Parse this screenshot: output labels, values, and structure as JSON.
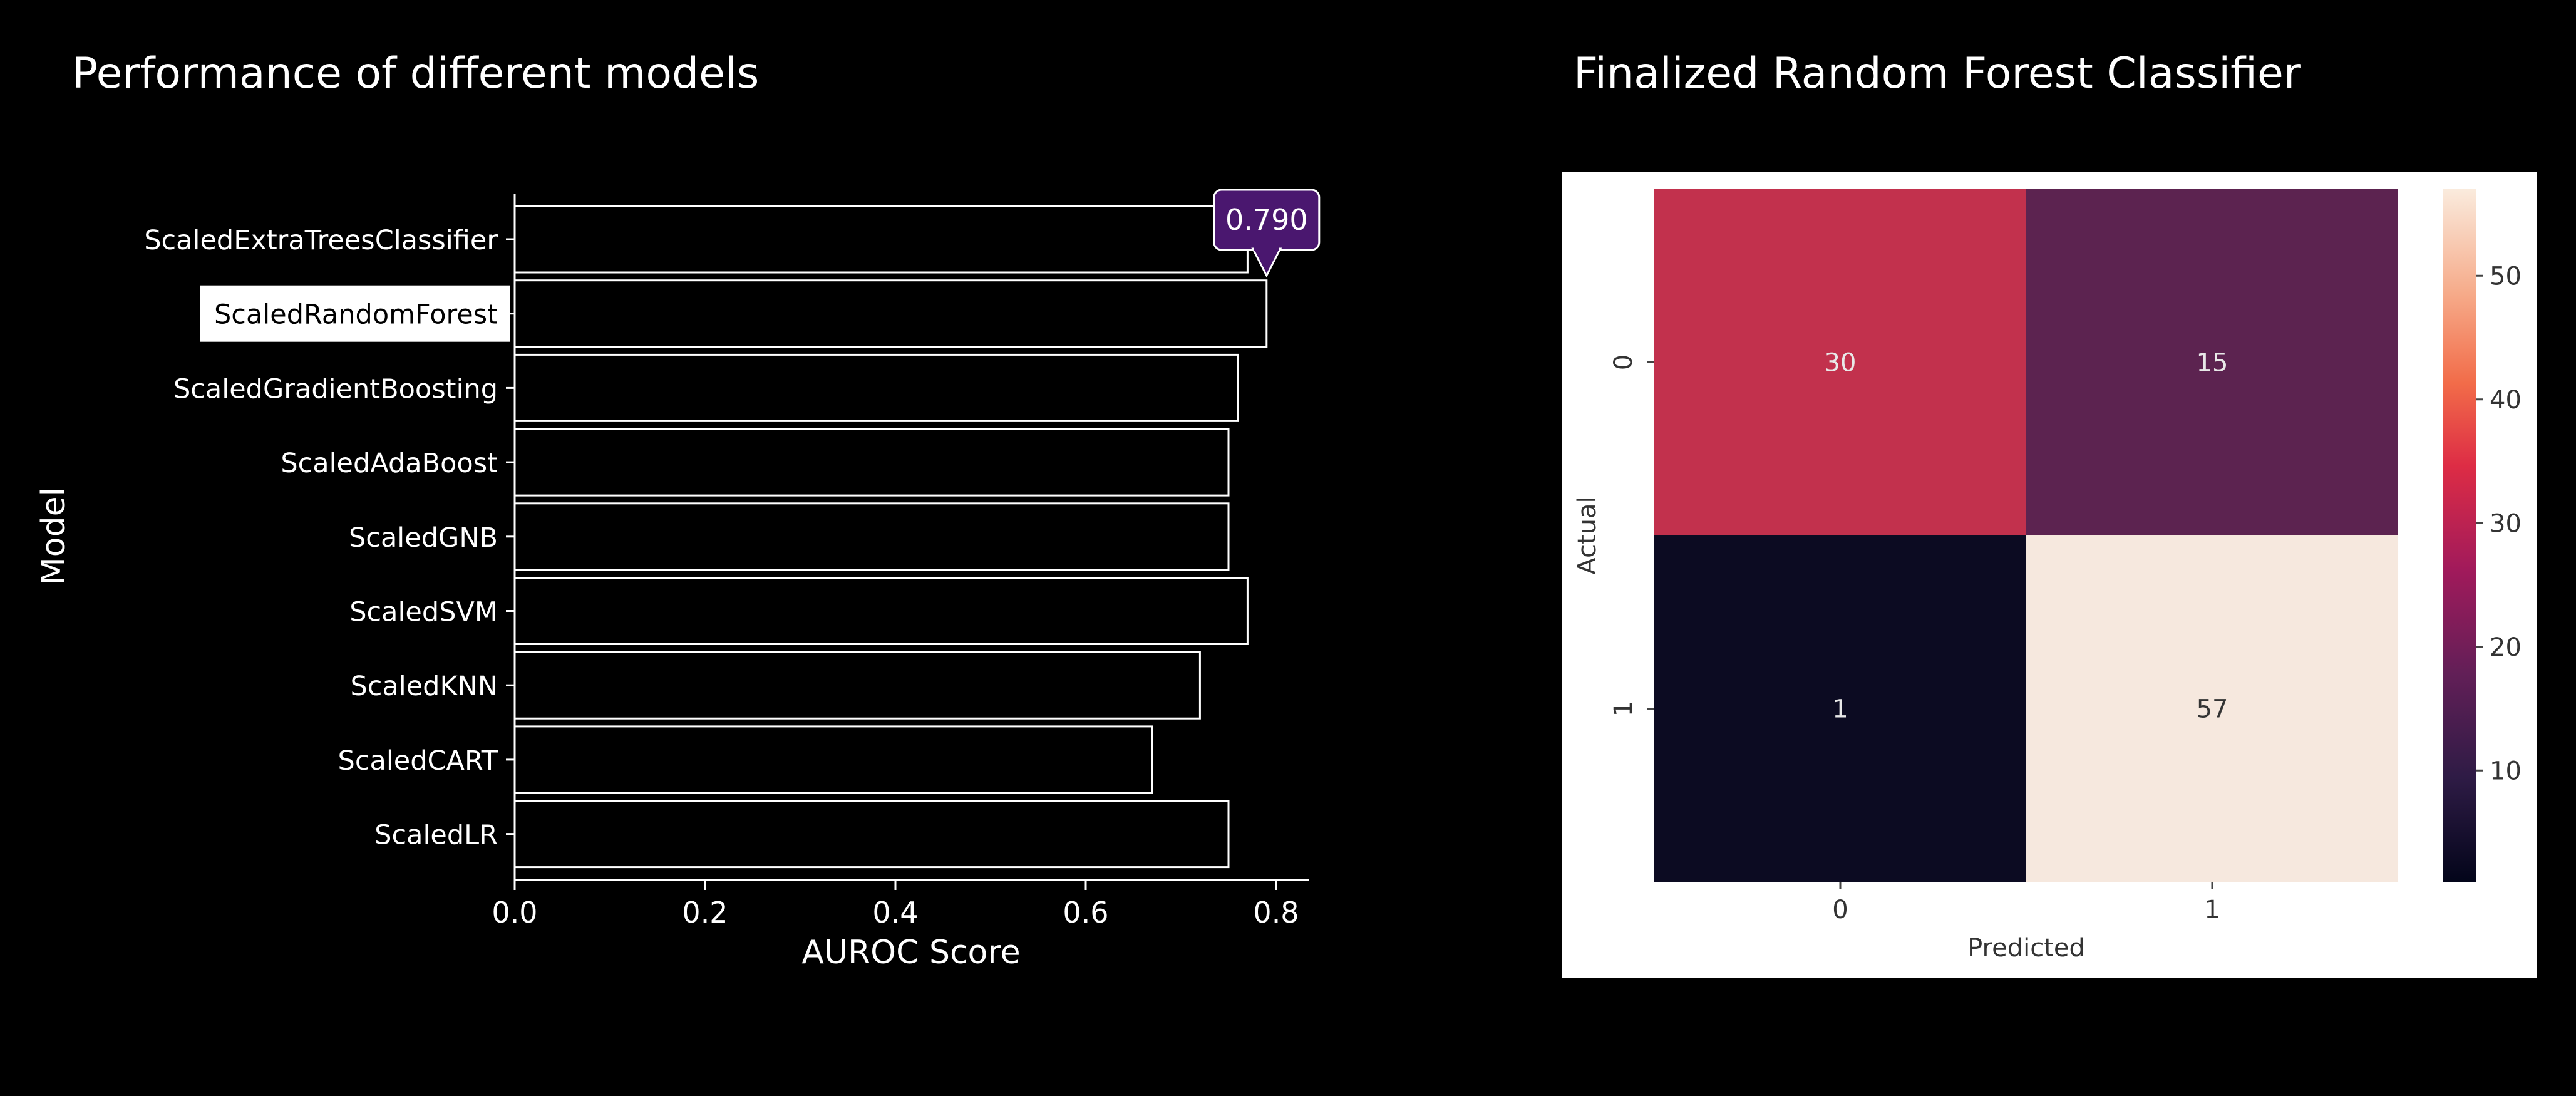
{
  "panels": {
    "left_title": "Performance of different models",
    "right_title": "Finalized Random Forest Classifier"
  },
  "chart_data": [
    {
      "type": "bar",
      "orientation": "horizontal",
      "ylabel": "Model",
      "xlabel": "AUROC Score",
      "categories": [
        "ScaledExtraTreesClassifier",
        "ScaledRandomForest",
        "ScaledGradientBoosting",
        "ScaledAdaBoost",
        "ScaledGNB",
        "ScaledSVM",
        "ScaledKNN",
        "ScaledCART",
        "ScaledLR"
      ],
      "values": [
        0.77,
        0.79,
        0.76,
        0.75,
        0.75,
        0.77,
        0.72,
        0.67,
        0.75
      ],
      "xlim": [
        0,
        0.82
      ],
      "xticks": [
        "0.0",
        "0.2",
        "0.4",
        "0.6",
        "0.8"
      ],
      "highlight": {
        "category": "ScaledRandomForest",
        "label": "0.790"
      },
      "colors": {
        "bar_fill": "#000000",
        "bar_edge": "#ffffff",
        "callout": "#4a176f",
        "highlight_bg": "#ffffff"
      }
    },
    {
      "type": "heatmap",
      "xlabel": "Predicted",
      "ylabel": "Actual",
      "x": [
        "0",
        "1"
      ],
      "y": [
        "0",
        "1"
      ],
      "values": [
        [
          30,
          15
        ],
        [
          1,
          57
        ]
      ],
      "colorbar": {
        "min": 1,
        "max": 57,
        "ticks": [
          "10",
          "20",
          "30",
          "40",
          "50"
        ]
      },
      "colors": {
        "c00": "#c2314d",
        "c01": "#5c2350",
        "c10": "#0c0b22",
        "c11": "#f6e8de"
      }
    }
  ]
}
